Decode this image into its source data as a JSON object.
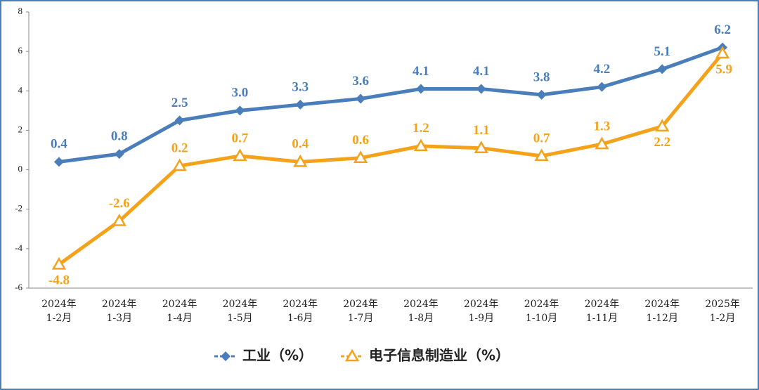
{
  "chart_data": {
    "type": "line",
    "categories": [
      [
        "2024年",
        "1-2月"
      ],
      [
        "2024年",
        "1-3月"
      ],
      [
        "2024年",
        "1-4月"
      ],
      [
        "2024年",
        "1-5月"
      ],
      [
        "2024年",
        "1-6月"
      ],
      [
        "2024年",
        "1-7月"
      ],
      [
        "2024年",
        "1-8月"
      ],
      [
        "2024年",
        "1-9月"
      ],
      [
        "2024年",
        "1-10月"
      ],
      [
        "2024年",
        "1-11月"
      ],
      [
        "2024年",
        "1-12月"
      ],
      [
        "2025年",
        "1-2月"
      ]
    ],
    "series": [
      {
        "name": "工业（%）",
        "color": "#4a7ebb",
        "marker": "diamond",
        "values": [
          0.4,
          0.8,
          2.5,
          3.0,
          3.3,
          3.6,
          4.1,
          4.1,
          3.8,
          4.2,
          5.1,
          6.2
        ],
        "value_labels": [
          "0.4",
          "0.8",
          "2.5",
          "3.0",
          "3.3",
          "3.6",
          "4.1",
          "4.1",
          "3.8",
          "4.2",
          "5.1",
          "6.2"
        ]
      },
      {
        "name": "电子信息制造业（%）",
        "color": "#f5a21b",
        "marker": "triangle",
        "values": [
          -4.8,
          -2.6,
          0.2,
          0.7,
          0.4,
          0.6,
          1.2,
          1.1,
          0.7,
          1.3,
          2.2,
          5.9
        ],
        "value_labels": [
          "-4.8",
          "-2.6",
          "0.2",
          "0.7",
          "0.4",
          "0.6",
          "1.2",
          "1.1",
          "0.7",
          "1.3",
          "2.2",
          "5.9"
        ]
      }
    ],
    "ylim": [
      -6,
      8
    ],
    "yticks": [
      -6,
      -4,
      -2,
      0,
      2,
      4,
      6,
      8
    ],
    "grid": false,
    "legend": "bottom"
  }
}
